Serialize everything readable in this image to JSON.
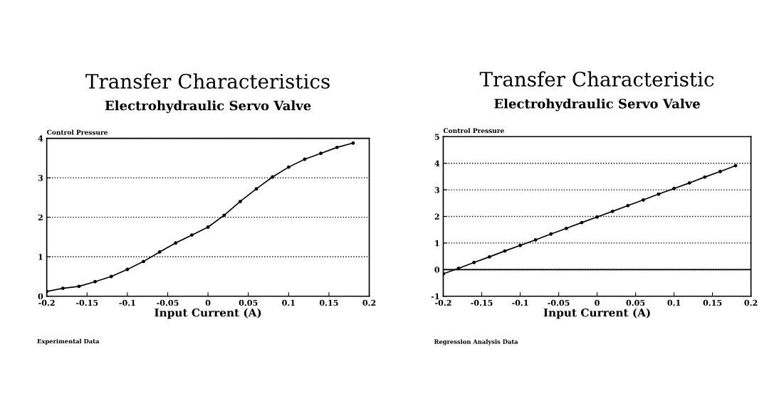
{
  "chart_data": [
    {
      "type": "line",
      "title": "Transfer Characteristics",
      "subtitle": "Electrohydraulic Servo Valve",
      "xlabel": "Input Current (A)",
      "ylabel": "Control Pressure",
      "x": [
        -0.2,
        -0.18,
        -0.16,
        -0.14,
        -0.12,
        -0.1,
        -0.08,
        -0.06,
        -0.04,
        -0.02,
        0,
        0.02,
        0.04,
        0.06,
        0.08,
        0.1,
        0.12,
        0.14,
        0.16,
        0.18
      ],
      "series": [
        {
          "color": "#000000",
          "values": [
            0.12,
            0.2,
            0.25,
            0.37,
            0.5,
            0.68,
            0.88,
            1.12,
            1.35,
            1.55,
            1.75,
            2.05,
            2.4,
            2.72,
            3.02,
            3.27,
            3.47,
            3.62,
            3.77,
            3.88
          ]
        }
      ],
      "xlim": [
        -0.2,
        0.2
      ],
      "xticks": [
        -0.2,
        -0.15,
        -0.1,
        -0.05,
        0,
        0.05,
        0.1,
        0.15,
        0.2
      ],
      "ylim": [
        0,
        4
      ],
      "yticks": [
        0,
        1,
        2,
        3,
        4
      ],
      "grid": "y",
      "marker": "circle",
      "line_style": "solid",
      "annotations": [
        "Experimental Data"
      ]
    },
    {
      "type": "line",
      "title": "Transfer Characteristic",
      "subtitle": "Electrohydraulic Servo Valve",
      "xlabel": "Input Current (A)",
      "ylabel": "Control Pressure",
      "x": [
        -0.2,
        -0.18,
        -0.16,
        -0.14,
        -0.12,
        -0.1,
        -0.08,
        -0.06,
        -0.04,
        -0.02,
        0,
        0.02,
        0.04,
        0.06,
        0.08,
        0.1,
        0.12,
        0.14,
        0.16,
        0.18
      ],
      "series": [
        {
          "color": "#000000",
          "values": [
            -0.16,
            0.05,
            0.27,
            0.48,
            0.7,
            0.91,
            1.12,
            1.34,
            1.55,
            1.77,
            1.98,
            2.19,
            2.41,
            2.62,
            2.84,
            3.05,
            3.26,
            3.48,
            3.69,
            3.91
          ]
        }
      ],
      "xlim": [
        -0.2,
        0.2
      ],
      "xticks": [
        -0.2,
        -0.15,
        -0.1,
        -0.05,
        0,
        0.05,
        0.1,
        0.15,
        0.2
      ],
      "ylim": [
        -1,
        5
      ],
      "yticks": [
        -1,
        0,
        1,
        2,
        3,
        4,
        5
      ],
      "grid": "y",
      "marker": "circle",
      "line_style": "solid",
      "ref_lines": [
        {
          "axis": "y",
          "value": 0,
          "color": "#000000",
          "line_style": "solid"
        }
      ],
      "annotations": [
        "Regression Analysis Data"
      ]
    }
  ]
}
